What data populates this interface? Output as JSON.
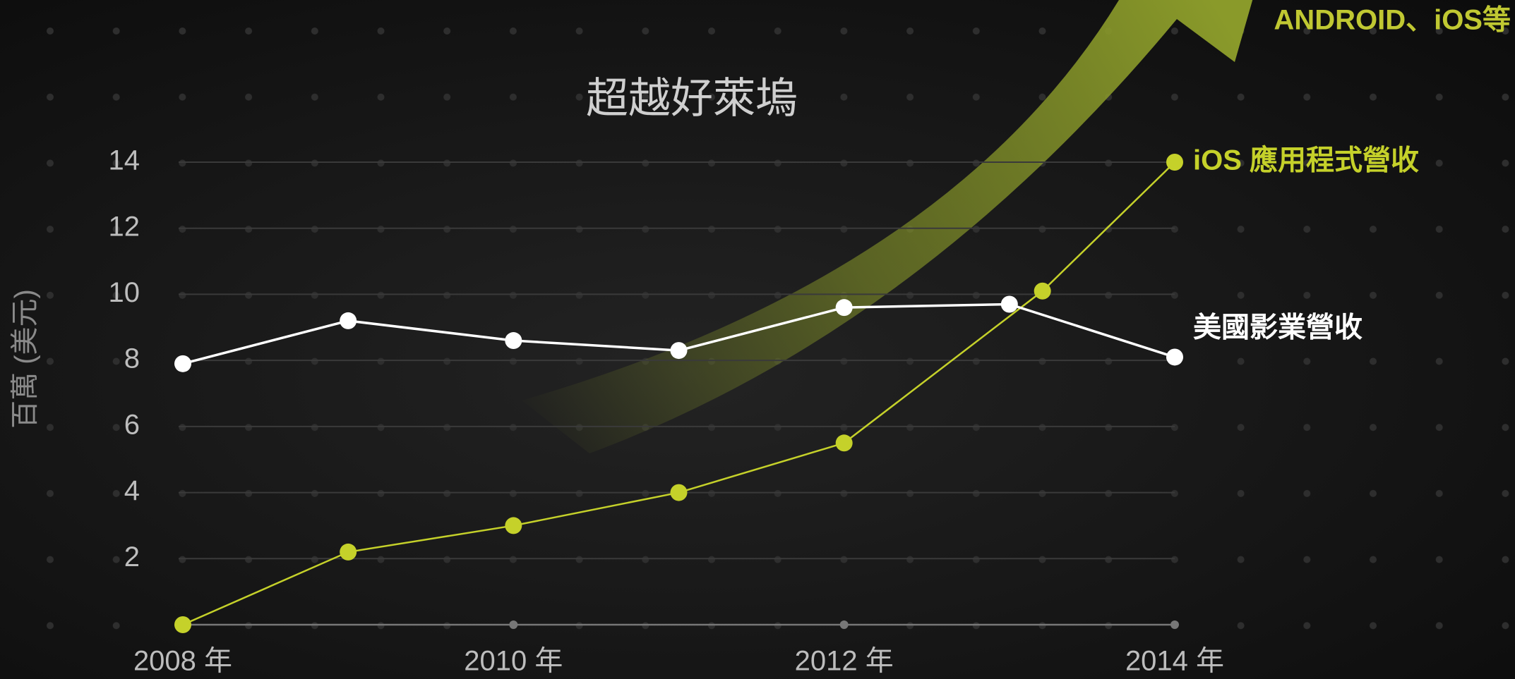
{
  "chart_data": {
    "type": "line",
    "title": "超越好萊塢",
    "ylabel": "百萬 (美元)",
    "annotation": "ANDROID、iOS等",
    "xlim": [
      2008,
      2014
    ],
    "xticks": [
      {
        "value": 2008,
        "label": "2008 年"
      },
      {
        "value": 2010,
        "label": "2010 年"
      },
      {
        "value": 2012,
        "label": "2012 年"
      },
      {
        "value": 2014,
        "label": "2014 年"
      }
    ],
    "ylim": [
      0,
      14
    ],
    "yticks": [
      2,
      4,
      6,
      8,
      10,
      12,
      14
    ],
    "grid": true,
    "series": [
      {
        "name": "iOS 應用程式營收",
        "color": "#c5d12a",
        "x": [
          2008,
          2009,
          2010,
          2011,
          2012,
          2013.2,
          2014
        ],
        "values": [
          0,
          2.2,
          3.0,
          4.0,
          5.5,
          10.1,
          14.0
        ]
      },
      {
        "name": "美國影業營收",
        "color": "#ffffff",
        "x": [
          2008,
          2009,
          2010,
          2011,
          2012,
          2013,
          2014
        ],
        "values": [
          7.9,
          9.2,
          8.6,
          8.3,
          9.6,
          9.7,
          8.1
        ]
      }
    ]
  }
}
